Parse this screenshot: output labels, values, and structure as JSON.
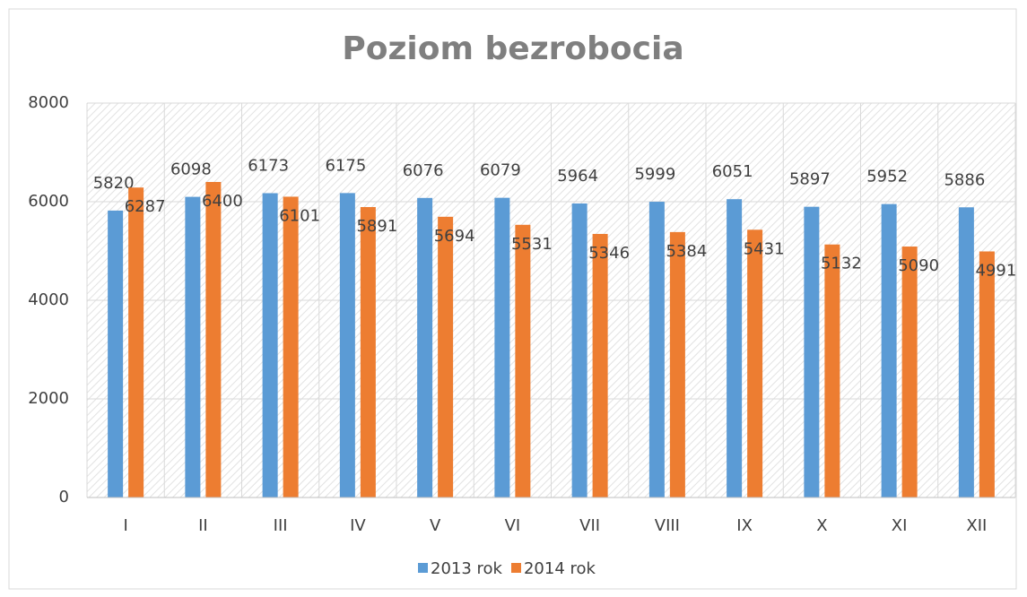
{
  "chart_data": {
    "type": "bar",
    "title": "Poziom bezrobocia",
    "categories": [
      "I",
      "II",
      "III",
      "IV",
      "V",
      "VI",
      "VII",
      "VIII",
      "IX",
      "X",
      "XI",
      "XII"
    ],
    "series": [
      {
        "name": "2013 rok",
        "color": "#5b9bd5",
        "values": [
          5820,
          6098,
          6173,
          6175,
          6076,
          6079,
          5964,
          5999,
          6051,
          5897,
          5952,
          5886
        ]
      },
      {
        "name": "2014 rok",
        "color": "#ed7d31",
        "values": [
          6287,
          6400,
          6101,
          5891,
          5694,
          5531,
          5346,
          5384,
          5431,
          5132,
          5090,
          4991
        ]
      }
    ],
    "ylim": [
      0,
      8000
    ],
    "yticks": [
      0,
      2000,
      4000,
      6000,
      8000
    ],
    "grid": true,
    "legend": "bottom"
  }
}
